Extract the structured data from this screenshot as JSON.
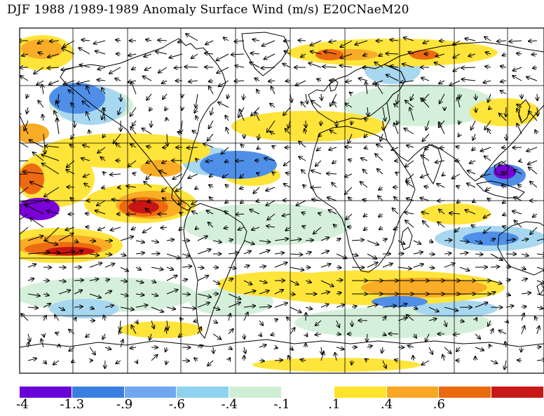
{
  "title": "DJF 1988 /1989-1989 Anomaly Surface Wind (m/s) E20CNaeM20",
  "colorbar": {
    "labels": [
      "-4",
      "-1.3",
      "-.9",
      "-.6",
      "-.4",
      "-.1",
      ".1",
      ".4",
      ".6"
    ],
    "colors": [
      "#6a00d8",
      "#3a7fe0",
      "#6fa8f0",
      "#8fd2f0",
      "#cfeed6",
      "#ffffff",
      "#ffe22a",
      "#f8a623",
      "#ec6a0e",
      "#c81818"
    ]
  },
  "palette": {
    "strong_negative": "#7b00d8",
    "negative": "#4f8fe8",
    "weak_negative": "#a8d8f0",
    "slight_negative": "#d4f0da",
    "neutral": "#ffffff",
    "slight_positive": "#ffe43a",
    "positive": "#f9ac26",
    "strong_positive": "#ee6a10",
    "very_strong_positive": "#c81414"
  }
}
